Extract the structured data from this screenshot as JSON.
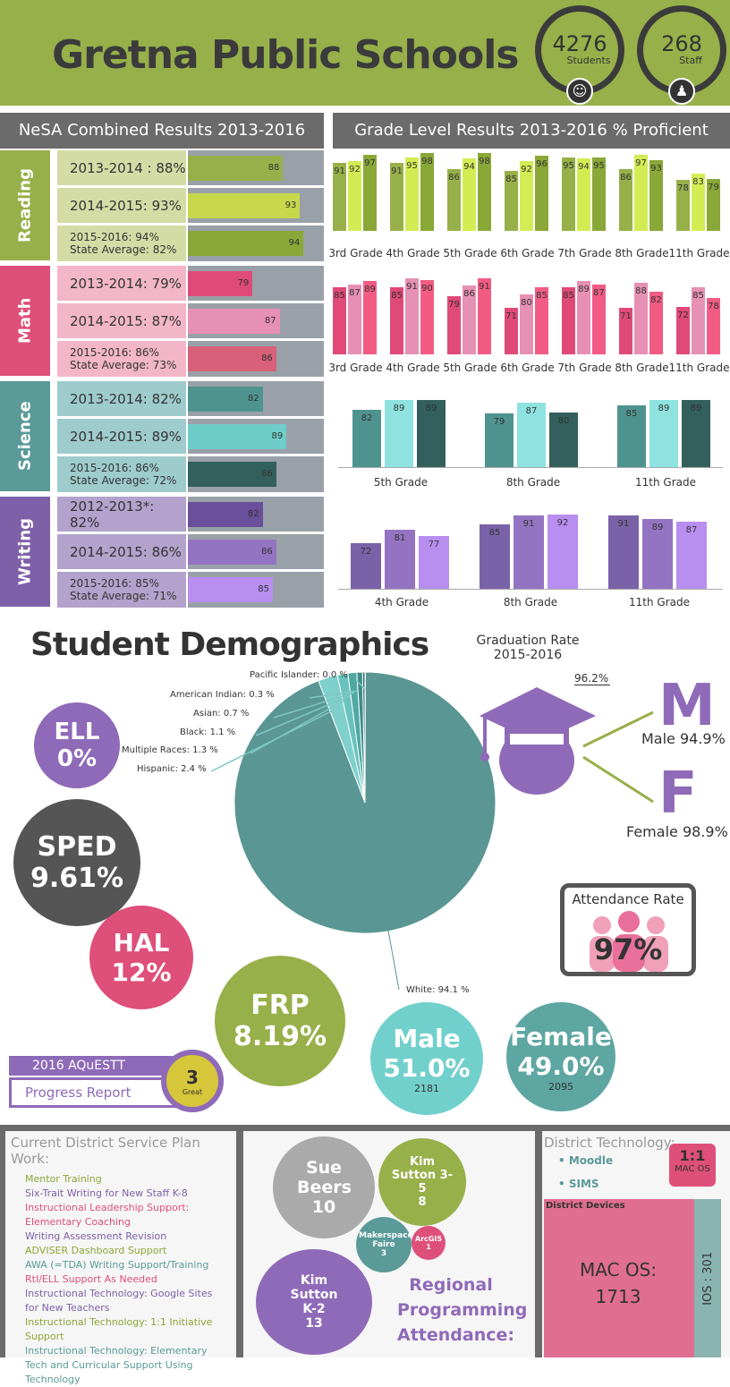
{
  "header": {
    "title": "Gretna Public Schools",
    "students_count": "4276",
    "students_label": "Students",
    "staff_count": "268",
    "staff_label": "Staff",
    "colors": {
      "header_bg": "#97b04a"
    }
  },
  "nesa": {
    "title": "NeSA Combined Results 2013-2016",
    "subjects": [
      {
        "name": "Reading",
        "color": "#97b04a",
        "label_bg": "#d4dca6",
        "rows": [
          {
            "label": "2013-2014 : 88%",
            "value": 88,
            "bar_color": "#97b04a"
          },
          {
            "label": "2014-2015:  93%",
            "value": 93,
            "bar_color": "#c7d84a"
          },
          {
            "label": "2015-2016:  94%",
            "sub": "State Average: 82%",
            "value": 94,
            "bar_color": "#8aa838"
          }
        ]
      },
      {
        "name": "Math",
        "color": "#de4f79",
        "label_bg": "#f2b6c8",
        "rows": [
          {
            "label": "2013-2014:  79%",
            "value": 79,
            "bar_color": "#e04a78"
          },
          {
            "label": "2014-2015:  87%",
            "value": 87,
            "bar_color": "#e690b4"
          },
          {
            "label": "2015-2016:  86%",
            "sub": "State Average: 73%",
            "value": 86,
            "bar_color": "#d86078"
          }
        ]
      },
      {
        "name": "Science",
        "color": "#5a9a98",
        "label_bg": "#9ecbcb",
        "rows": [
          {
            "label": "2013-2014:  82%",
            "value": 82,
            "bar_color": "#4f9390"
          },
          {
            "label": "2014-2015:  89%",
            "value": 89,
            "bar_color": "#6ecdc9"
          },
          {
            "label": "2015-2016:  86%",
            "sub": "State Average: 72%",
            "value": 86,
            "bar_color": "#33605c"
          }
        ]
      },
      {
        "name": "Writing",
        "color": "#7e60a8",
        "label_bg": "#b2a2cc",
        "rows": [
          {
            "label": "2012-2013*:  82%",
            "value": 82,
            "bar_color": "#6a4f9a"
          },
          {
            "label": "2014-2015:  86%",
            "value": 86,
            "bar_color": "#9474c2"
          },
          {
            "label": "2015-2016:  85%",
            "sub": "State Average: 71%",
            "value": 85,
            "bar_color": "#b88ef0"
          }
        ]
      }
    ]
  },
  "grade_level": {
    "title": "Grade Level Results 2013-2016  % Proficient"
  },
  "chart_data": [
    {
      "type": "bar",
      "subject": "Reading",
      "categories": [
        "3rd Grade",
        "4th Grade",
        "5th Grade",
        "6th Grade",
        "7th Grade",
        "8th Grade",
        "11th Grade"
      ],
      "series": [
        {
          "values": [
            91,
            91,
            86,
            85,
            95,
            86,
            78
          ],
          "color": "#97b04a"
        },
        {
          "values": [
            92,
            95,
            94,
            92,
            94,
            97,
            83
          ],
          "color": "#d4ec54"
        },
        {
          "values": [
            97,
            98,
            98,
            96,
            95,
            93,
            79
          ],
          "color": "#8aa838"
        }
      ],
      "ylim": [
        0,
        100
      ]
    },
    {
      "type": "bar",
      "subject": "Math",
      "categories": [
        "3rd Grade",
        "4th Grade",
        "5th Grade",
        "6th Grade",
        "7th Grade",
        "8th Grade",
        "11th Grade"
      ],
      "series": [
        {
          "values": [
            85,
            85,
            79,
            71,
            85,
            71,
            72
          ],
          "color": "#e04a78"
        },
        {
          "values": [
            87,
            91,
            86,
            80,
            89,
            88,
            85
          ],
          "color": "#e690b4"
        },
        {
          "values": [
            89,
            90,
            91,
            85,
            87,
            82,
            78
          ],
          "color": "#f25c84"
        }
      ],
      "ylim": [
        0,
        100
      ]
    },
    {
      "type": "bar",
      "subject": "Science",
      "categories": [
        "5th Grade",
        "8th Grade",
        "11th Grade"
      ],
      "series": [
        {
          "values": [
            82,
            79,
            85
          ],
          "color": "#4f9390"
        },
        {
          "values": [
            89,
            87,
            89
          ],
          "color": "#8ee2e0"
        },
        {
          "values": [
            89,
            80,
            89
          ],
          "color": "#33605c"
        }
      ],
      "ylim": [
        0,
        100
      ]
    },
    {
      "type": "bar",
      "subject": "Writing",
      "categories": [
        "4th Grade",
        "8th Grade",
        "11th Grade"
      ],
      "series": [
        {
          "values": [
            72,
            85,
            91
          ],
          "color": "#7a62a8"
        },
        {
          "values": [
            81,
            91,
            89
          ],
          "color": "#9474c2"
        },
        {
          "values": [
            77,
            92,
            87
          ],
          "color": "#b88ef0"
        }
      ],
      "ylim": [
        0,
        100
      ]
    },
    {
      "type": "pie",
      "slices": [
        {
          "label": "White: 94.1 %",
          "value": 94.1
        },
        {
          "label": "Hispanic: 2.4 %",
          "value": 2.4
        },
        {
          "label": "Multiple Races: 1.3 %",
          "value": 1.3
        },
        {
          "label": "Black: 1.1 %",
          "value": 1.1
        },
        {
          "label": "Asian: 0.7 %",
          "value": 0.7
        },
        {
          "label": "American Indian: 0.3 %",
          "value": 0.3
        },
        {
          "label": "Pacific Islander: 0.0 %",
          "value": 0.0
        }
      ]
    }
  ],
  "demographics": {
    "title": "Student Demographics",
    "ell": {
      "label": "ELL",
      "value": "0%"
    },
    "sped": {
      "label": "SPED",
      "value": "9.61%"
    },
    "hal": {
      "label": "HAL",
      "value": "12%"
    },
    "frp": {
      "label": "FRP",
      "value": "8.19%"
    },
    "male": {
      "label": "Male",
      "value": "51.0%",
      "count": "2181"
    },
    "female": {
      "label": "Female",
      "value": "49.0%",
      "count": "2095"
    },
    "graduation": {
      "title": "Graduation Rate",
      "years": "2015-2016",
      "overall": "96.2%",
      "m": "M",
      "male": "Male 94.9%",
      "f": "F",
      "female": "Female 98.9%"
    },
    "attendance": {
      "title": "Attendance Rate",
      "value": "97%"
    },
    "aquestt": {
      "title": "2016 AQuESTT",
      "subtitle": "Progress Report",
      "score": "3",
      "score_label": "Great"
    }
  },
  "service": {
    "title": "Current District Service Plan Work:",
    "items": [
      {
        "text": "Mentor Training",
        "color": "#8aa838"
      },
      {
        "text": "Six-Trait Writing for New Staff K-8",
        "color": "#7e60a8"
      },
      {
        "text": "Instructional Leadership Support: Elementary Coaching",
        "color": "#de4f79"
      },
      {
        "text": "Writing Assessment Revision",
        "color": "#7e60a8"
      },
      {
        "text": "ADVISER Dashboard Support",
        "color": "#8aa838"
      },
      {
        "text": "AWA (=TDA) Writing Support/Training",
        "color": "#5a9a98"
      },
      {
        "text": "RtI/ELL Support As Needed",
        "color": "#de4f79"
      },
      {
        "text": "Instructional Technology: Google Sites for New Teachers",
        "color": "#7e60a8"
      },
      {
        "text": "Instructional Technology: 1:1 Initiative Support",
        "color": "#8aa838"
      },
      {
        "text": "Instructional Technology: Elementary Tech and Curricular Support Using Technology",
        "color": "#5a9a98"
      }
    ]
  },
  "regional": {
    "title": "Regional Programming Attendance:",
    "bubbles": [
      {
        "name": "Sue Beers",
        "value": "10"
      },
      {
        "name": "Kim Sutton 3-5",
        "value": "8"
      },
      {
        "name": "Makerspace Faire",
        "value": "3"
      },
      {
        "name": "ArcGIS",
        "value": "1"
      },
      {
        "name": "Kim Sutton K-2",
        "value": "13"
      }
    ]
  },
  "technology": {
    "title": "District Technology:",
    "items": [
      "Moodle",
      "SIMS"
    ],
    "badge_top": "1:1",
    "badge_bottom": "MAC OS",
    "devices_title": "District Devices",
    "mac_label": "MAC OS:",
    "mac_value": "1713",
    "ios_label": "IOS : 301"
  }
}
